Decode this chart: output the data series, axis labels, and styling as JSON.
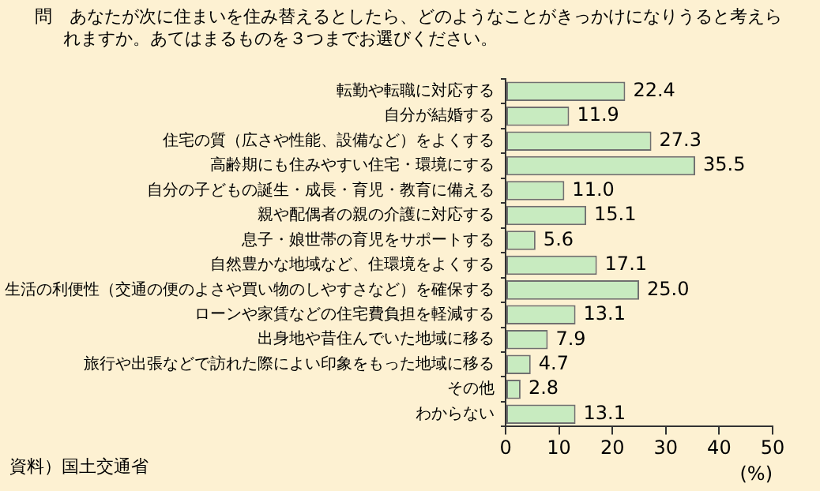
{
  "chart_data": {
    "type": "bar",
    "orientation": "horizontal",
    "title": "問　あなたが次に住まいを住み替えるとしたら、どのようなことがきっかけになりうると考えられますか。あてはまるものを３つまでお選びください。",
    "xlabel": "(%)",
    "annotations": [
      "資料）国土交通省"
    ],
    "categories": [
      "転勤や転職に対応する",
      "自分が結婚する",
      "住宅の質（広さや性能、設備など）をよくする",
      "高齢期にも住みやすい住宅・環境にする",
      "自分の子どもの誕生・成長・育児・教育に備える",
      "親や配偶者の親の介護に対応する",
      "息子・娘世帯の育児をサポートする",
      "自然豊かな地域など、住環境をよくする",
      "生活の利便性（交通の便のよさや買い物のしやすさなど）を確保する",
      "ローンや家賃などの住宅費負担を軽減する",
      "出身地や昔住んでいた地域に移る",
      "旅行や出張などで訪れた際によい印象をもった地域に移る",
      "その他",
      "わからない"
    ],
    "values": [
      22.4,
      11.9,
      27.3,
      35.5,
      11.0,
      15.1,
      5.6,
      17.1,
      25.0,
      13.1,
      7.9,
      4.7,
      2.8,
      13.1
    ],
    "value_labels": [
      "22.4",
      "11.9",
      "27.3",
      "35.5",
      "11.0",
      "15.1",
      "5.6",
      "17.1",
      "25.0",
      "13.1",
      "7.9",
      "4.7",
      "2.8",
      "13.1"
    ],
    "color": "#c8ebc0",
    "xlim": [
      0,
      50
    ],
    "xticks": [
      0,
      10,
      20,
      30,
      40,
      50
    ],
    "grid": false,
    "legend": false
  }
}
